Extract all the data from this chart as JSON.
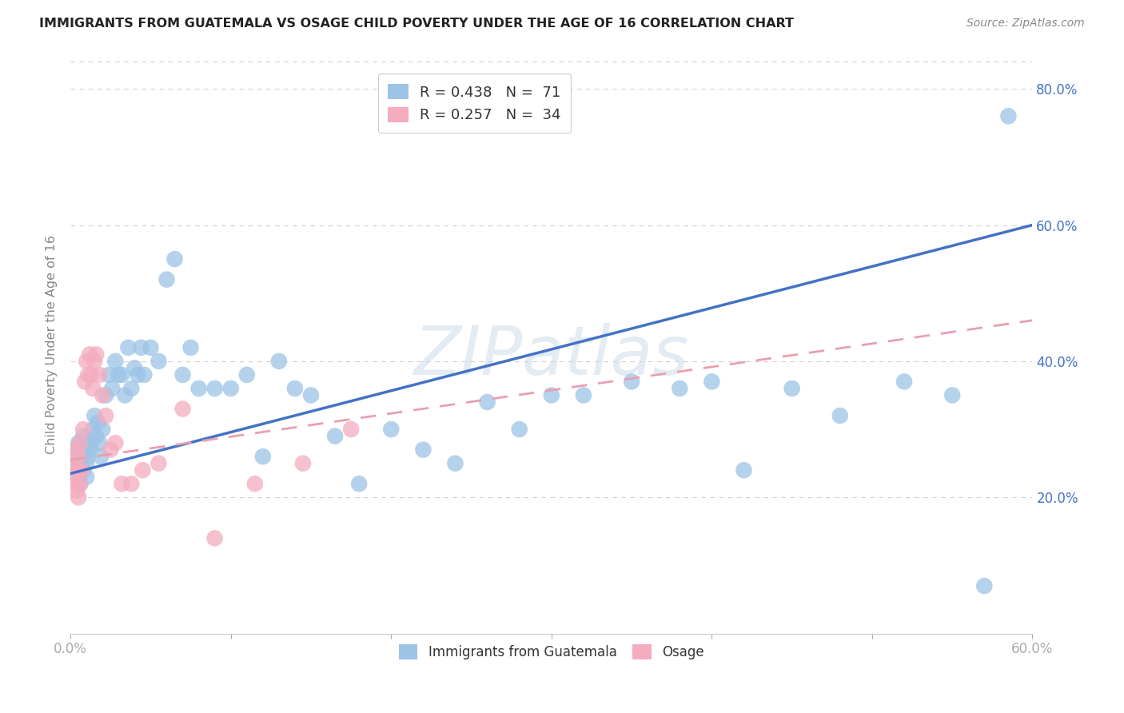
{
  "title": "IMMIGRANTS FROM GUATEMALA VS OSAGE CHILD POVERTY UNDER THE AGE OF 16 CORRELATION CHART",
  "source": "Source: ZipAtlas.com",
  "ylabel": "Child Poverty Under the Age of 16",
  "xlim": [
    0.0,
    0.6
  ],
  "ylim": [
    0.0,
    0.85
  ],
  "y_ticks": [
    0.0,
    0.2,
    0.4,
    0.6,
    0.8
  ],
  "y_tick_labels_right": [
    "",
    "20.0%",
    "40.0%",
    "60.0%",
    "80.0%"
  ],
  "x_ticks": [
    0.0,
    0.1,
    0.2,
    0.3,
    0.4,
    0.5,
    0.6
  ],
  "x_tick_labels": [
    "0.0%",
    "",
    "",
    "",
    "",
    "",
    "60.0%"
  ],
  "legend_entries": [
    {
      "label": "R = 0.438   N =  71",
      "color": "#a8c4e0"
    },
    {
      "label": "R = 0.257   N =  34",
      "color": "#f4b8c8"
    }
  ],
  "blue_scatter_x": [
    0.002,
    0.003,
    0.004,
    0.004,
    0.005,
    0.005,
    0.006,
    0.006,
    0.007,
    0.007,
    0.008,
    0.008,
    0.009,
    0.01,
    0.01,
    0.011,
    0.012,
    0.013,
    0.014,
    0.015,
    0.016,
    0.017,
    0.018,
    0.019,
    0.02,
    0.022,
    0.024,
    0.026,
    0.028,
    0.03,
    0.032,
    0.034,
    0.036,
    0.038,
    0.04,
    0.042,
    0.044,
    0.046,
    0.05,
    0.055,
    0.06,
    0.065,
    0.07,
    0.075,
    0.08,
    0.09,
    0.1,
    0.11,
    0.12,
    0.13,
    0.14,
    0.15,
    0.165,
    0.18,
    0.2,
    0.22,
    0.24,
    0.26,
    0.28,
    0.3,
    0.32,
    0.35,
    0.38,
    0.4,
    0.42,
    0.45,
    0.48,
    0.52,
    0.55,
    0.57,
    0.585
  ],
  "blue_scatter_y": [
    0.25,
    0.27,
    0.24,
    0.26,
    0.23,
    0.28,
    0.22,
    0.25,
    0.26,
    0.28,
    0.24,
    0.29,
    0.27,
    0.25,
    0.23,
    0.26,
    0.27,
    0.28,
    0.3,
    0.32,
    0.29,
    0.31,
    0.28,
    0.26,
    0.3,
    0.35,
    0.38,
    0.36,
    0.4,
    0.38,
    0.38,
    0.35,
    0.42,
    0.36,
    0.39,
    0.38,
    0.42,
    0.38,
    0.42,
    0.4,
    0.52,
    0.55,
    0.38,
    0.42,
    0.36,
    0.36,
    0.36,
    0.38,
    0.26,
    0.4,
    0.36,
    0.35,
    0.29,
    0.22,
    0.3,
    0.27,
    0.25,
    0.34,
    0.3,
    0.35,
    0.35,
    0.37,
    0.36,
    0.37,
    0.24,
    0.36,
    0.32,
    0.37,
    0.35,
    0.07,
    0.76
  ],
  "pink_scatter_x": [
    0.001,
    0.002,
    0.003,
    0.003,
    0.004,
    0.004,
    0.005,
    0.005,
    0.006,
    0.006,
    0.007,
    0.008,
    0.009,
    0.01,
    0.011,
    0.012,
    0.013,
    0.014,
    0.015,
    0.016,
    0.018,
    0.02,
    0.022,
    0.025,
    0.028,
    0.032,
    0.038,
    0.045,
    0.055,
    0.07,
    0.09,
    0.115,
    0.145,
    0.175
  ],
  "pink_scatter_y": [
    0.25,
    0.23,
    0.27,
    0.22,
    0.21,
    0.24,
    0.2,
    0.26,
    0.22,
    0.28,
    0.24,
    0.3,
    0.37,
    0.4,
    0.38,
    0.41,
    0.38,
    0.36,
    0.4,
    0.41,
    0.38,
    0.35,
    0.32,
    0.27,
    0.28,
    0.22,
    0.22,
    0.24,
    0.25,
    0.33,
    0.14,
    0.22,
    0.25,
    0.3
  ],
  "blue_line_x": [
    0.0,
    0.6
  ],
  "blue_line_y": [
    0.235,
    0.6
  ],
  "pink_line_x": [
    0.0,
    0.6
  ],
  "pink_line_y": [
    0.255,
    0.46
  ],
  "blue_color": "#4472c4",
  "pink_color": "#e8a0b0",
  "blue_fill": "#9dc3e6",
  "pink_fill": "#f4acbe",
  "watermark": "ZIPatlas",
  "background_color": "#ffffff",
  "grid_color": "#d0d0d0"
}
